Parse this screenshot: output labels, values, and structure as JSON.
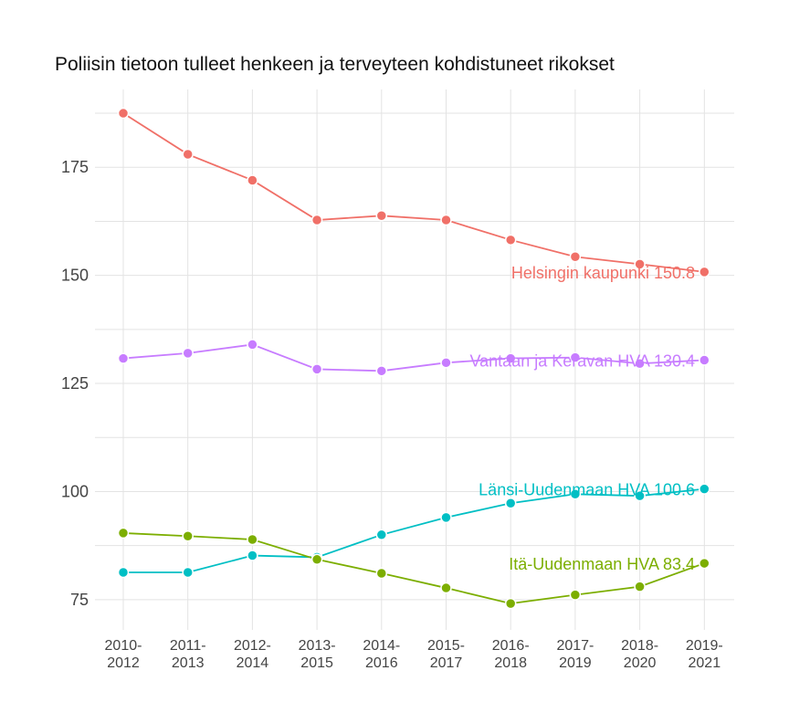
{
  "chart_data": {
    "type": "line",
    "title": "Poliisin tietoon tulleet henkeen ja terveyteen kohdistuneet rikokset",
    "xlabel": "",
    "ylabel": "",
    "categories": [
      [
        "2010-",
        "2012"
      ],
      [
        "2011-",
        "2013"
      ],
      [
        "2012-",
        "2014"
      ],
      [
        "2013-",
        "2015"
      ],
      [
        "2014-",
        "2016"
      ],
      [
        "2015-",
        "2017"
      ],
      [
        "2016-",
        "2018"
      ],
      [
        "2017-",
        "2019"
      ],
      [
        "2018-",
        "2020"
      ],
      [
        "2019-",
        "2021"
      ]
    ],
    "ylim": [
      68,
      193
    ],
    "yticks": [
      75,
      100,
      125,
      150,
      175
    ],
    "grid": true,
    "legend": "none",
    "series": [
      {
        "name": "Helsingin kaupunki",
        "end_label": "Helsingin kaupunki 150.8",
        "color": "#f07068",
        "values": [
          187.5,
          178.0,
          172.0,
          162.8,
          163.8,
          162.8,
          158.2,
          154.3,
          152.6,
          150.8
        ]
      },
      {
        "name": "Vantaan ja Keravan HVA",
        "end_label": "Vantaan ja Keravan HVA 130.4",
        "color": "#c77cff",
        "values": [
          130.8,
          132.0,
          134.0,
          128.3,
          127.9,
          129.8,
          130.8,
          131.0,
          129.6,
          130.4
        ]
      },
      {
        "name": "Länsi-Uudenmaan HVA",
        "end_label": "Länsi-Uudenmaan HVA 100.6",
        "color": "#00bfc4",
        "values": [
          81.3,
          81.3,
          85.2,
          84.8,
          90.0,
          94.0,
          97.3,
          99.4,
          99.0,
          100.6
        ]
      },
      {
        "name": "Itä-Uudenmaan HVA",
        "end_label": "Itä-Uudenmaan HVA 83.4",
        "color": "#7cae00",
        "values": [
          90.4,
          89.7,
          88.9,
          84.3,
          81.1,
          77.7,
          74.1,
          76.1,
          78.0,
          83.4
        ]
      }
    ]
  }
}
